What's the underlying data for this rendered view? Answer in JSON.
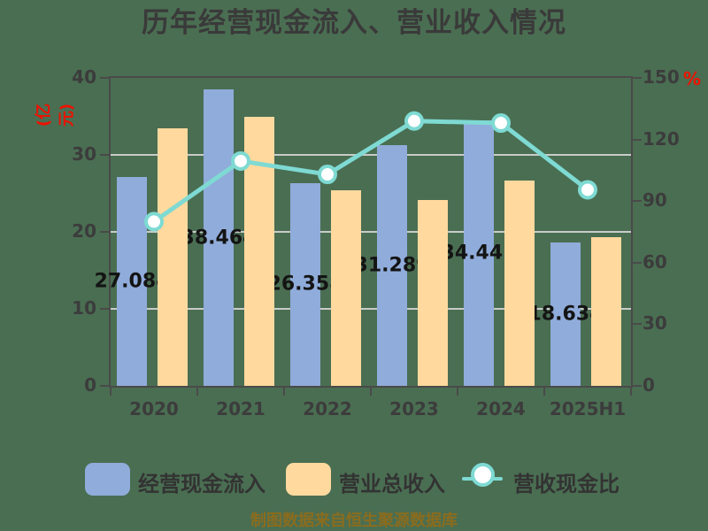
{
  "title": "历年经营现金流入、营业收入情况",
  "chart_data": {
    "type": "combo-bar-line",
    "categories": [
      "2020",
      "2021",
      "2022",
      "2023",
      "2024",
      "2025H1"
    ],
    "series": [
      {
        "name": "经营现金流入",
        "type": "bar",
        "yaxis": "left",
        "color": "#90ACDA",
        "values": [
          27.084,
          38.464,
          26.358,
          31.289,
          34.441,
          18.634
        ],
        "data_labels": [
          "27.084",
          "38.464",
          "26.358",
          "31.289",
          "34.441",
          "18.634"
        ]
      },
      {
        "name": "营业总收入",
        "type": "bar",
        "yaxis": "left",
        "color": "#FFD99E",
        "values": [
          33.5,
          35.0,
          25.4,
          24.1,
          26.7,
          19.3
        ]
      },
      {
        "name": "营收现金比",
        "type": "line",
        "yaxis": "right",
        "color": "#7EDAD3",
        "marker": "white-circle",
        "values": [
          80,
          109.5,
          103,
          129,
          128,
          95.5
        ]
      }
    ],
    "left_axis": {
      "unit": "(亿元)",
      "min": 0,
      "max": 40,
      "ticks": [
        "0",
        "10",
        "20",
        "30",
        "40"
      ]
    },
    "right_axis": {
      "unit": "%",
      "min": 0,
      "max": 150,
      "ticks": [
        "0",
        "30",
        "60",
        "90",
        "120",
        "150"
      ]
    },
    "grid": "horizontal",
    "legend_position": "bottom"
  },
  "legend": {
    "items": [
      {
        "label": "经营现金流入",
        "swatch": "bar",
        "color": "#90ACDA"
      },
      {
        "label": "营业总收入",
        "swatch": "bar",
        "color": "#FFD99E"
      },
      {
        "label": "营收现金比",
        "swatch": "line-circle",
        "color": "#7EDAD3"
      }
    ]
  },
  "footer": {
    "text": "制图数据来自恒生聚源数据库"
  },
  "colors": {
    "background": "#4A6E52",
    "bar_cash": "#90ACDA",
    "bar_revenue": "#FFD99E",
    "ratio_line": "#7EDAD3",
    "axis": "#4A4A4A",
    "gridline": "#D6D6D6",
    "tick_text": "#3C3C3C",
    "title_text": "#3A3A3A",
    "unit_text": "#EE1100",
    "bar_label_text": "#141414",
    "footer_text": "#8A6C1E"
  }
}
